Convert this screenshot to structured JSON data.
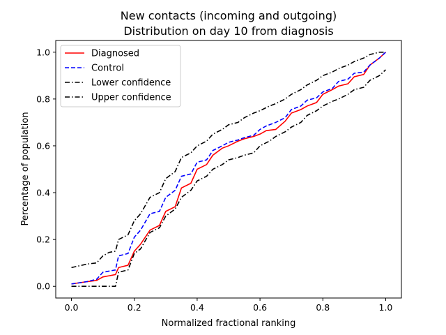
{
  "chart_data": {
    "type": "line",
    "title": "New contacts (incoming and outgoing)",
    "subtitle": "Distribution on day 10 from diagnosis",
    "xlabel": "Normalized fractional ranking",
    "ylabel": "Percentage of population",
    "xlim": [
      -0.05,
      1.05
    ],
    "ylim": [
      -0.05,
      1.05
    ],
    "xticks": [
      0.0,
      0.2,
      0.4,
      0.6,
      0.8,
      1.0
    ],
    "yticks": [
      0.0,
      0.2,
      0.4,
      0.6,
      0.8,
      1.0
    ],
    "xtick_labels": [
      "0.0",
      "0.2",
      "0.4",
      "0.6",
      "0.8",
      "1.0"
    ],
    "ytick_labels": [
      "0.0",
      "0.2",
      "0.4",
      "0.6",
      "0.8",
      "1.0"
    ],
    "grid": false,
    "legend_position": "upper-left",
    "series": [
      {
        "name": "Diagnosed",
        "color": "#ff0000",
        "dash": "solid",
        "x": [
          0.0,
          0.05,
          0.08,
          0.1,
          0.12,
          0.14,
          0.15,
          0.18,
          0.2,
          0.22,
          0.25,
          0.28,
          0.3,
          0.33,
          0.35,
          0.38,
          0.4,
          0.43,
          0.45,
          0.48,
          0.5,
          0.53,
          0.55,
          0.58,
          0.6,
          0.62,
          0.65,
          0.68,
          0.7,
          0.73,
          0.75,
          0.78,
          0.8,
          0.83,
          0.85,
          0.88,
          0.9,
          0.93,
          0.95,
          0.98,
          1.0
        ],
        "y": [
          0.01,
          0.02,
          0.025,
          0.04,
          0.045,
          0.05,
          0.08,
          0.09,
          0.15,
          0.18,
          0.24,
          0.26,
          0.32,
          0.34,
          0.42,
          0.44,
          0.5,
          0.52,
          0.56,
          0.59,
          0.6,
          0.62,
          0.63,
          0.64,
          0.65,
          0.665,
          0.67,
          0.705,
          0.74,
          0.755,
          0.77,
          0.785,
          0.82,
          0.84,
          0.855,
          0.865,
          0.895,
          0.905,
          0.945,
          0.975,
          1.0
        ]
      },
      {
        "name": "Control",
        "color": "#0000ff",
        "dash": "dashed",
        "x": [
          0.0,
          0.05,
          0.08,
          0.1,
          0.12,
          0.14,
          0.15,
          0.18,
          0.2,
          0.22,
          0.25,
          0.28,
          0.3,
          0.33,
          0.35,
          0.38,
          0.4,
          0.43,
          0.45,
          0.48,
          0.5,
          0.53,
          0.55,
          0.58,
          0.6,
          0.62,
          0.65,
          0.68,
          0.7,
          0.73,
          0.75,
          0.78,
          0.8,
          0.83,
          0.85,
          0.88,
          0.9,
          0.93,
          0.95,
          0.98,
          1.0
        ],
        "y": [
          0.01,
          0.02,
          0.03,
          0.06,
          0.065,
          0.07,
          0.13,
          0.14,
          0.21,
          0.24,
          0.31,
          0.32,
          0.38,
          0.41,
          0.47,
          0.48,
          0.53,
          0.54,
          0.58,
          0.6,
          0.615,
          0.625,
          0.635,
          0.645,
          0.67,
          0.685,
          0.7,
          0.72,
          0.755,
          0.77,
          0.795,
          0.805,
          0.83,
          0.845,
          0.875,
          0.885,
          0.91,
          0.915,
          0.945,
          0.975,
          1.0
        ]
      },
      {
        "name": "Lower confidence",
        "color": "#000000",
        "dash": "dashdot",
        "x": [
          0.0,
          0.05,
          0.1,
          0.14,
          0.15,
          0.18,
          0.2,
          0.22,
          0.25,
          0.28,
          0.3,
          0.33,
          0.35,
          0.38,
          0.4,
          0.43,
          0.45,
          0.48,
          0.5,
          0.53,
          0.55,
          0.58,
          0.6,
          0.63,
          0.65,
          0.68,
          0.7,
          0.73,
          0.75,
          0.78,
          0.8,
          0.83,
          0.85,
          0.88,
          0.9,
          0.93,
          0.95,
          0.98,
          1.0
        ],
        "y": [
          0.0,
          0.0,
          0.0,
          0.0,
          0.06,
          0.07,
          0.14,
          0.16,
          0.23,
          0.25,
          0.3,
          0.33,
          0.38,
          0.41,
          0.45,
          0.47,
          0.5,
          0.52,
          0.54,
          0.55,
          0.56,
          0.57,
          0.6,
          0.62,
          0.64,
          0.66,
          0.68,
          0.7,
          0.73,
          0.75,
          0.77,
          0.79,
          0.8,
          0.82,
          0.84,
          0.85,
          0.88,
          0.9,
          0.925
        ]
      },
      {
        "name": "Upper confidence",
        "color": "#000000",
        "dash": "dashdot",
        "x": [
          0.0,
          0.05,
          0.08,
          0.1,
          0.12,
          0.14,
          0.15,
          0.18,
          0.2,
          0.22,
          0.25,
          0.28,
          0.3,
          0.33,
          0.35,
          0.38,
          0.4,
          0.43,
          0.45,
          0.48,
          0.5,
          0.53,
          0.55,
          0.58,
          0.6,
          0.63,
          0.65,
          0.68,
          0.7,
          0.73,
          0.75,
          0.78,
          0.8,
          0.83,
          0.85,
          0.88,
          0.9,
          0.93,
          0.95,
          0.98,
          1.0
        ],
        "y": [
          0.08,
          0.095,
          0.1,
          0.13,
          0.145,
          0.15,
          0.2,
          0.22,
          0.28,
          0.31,
          0.38,
          0.4,
          0.46,
          0.49,
          0.55,
          0.57,
          0.6,
          0.62,
          0.65,
          0.67,
          0.69,
          0.7,
          0.72,
          0.74,
          0.75,
          0.77,
          0.78,
          0.8,
          0.82,
          0.84,
          0.86,
          0.88,
          0.9,
          0.915,
          0.93,
          0.945,
          0.96,
          0.975,
          0.99,
          1.0,
          1.0
        ]
      }
    ]
  }
}
